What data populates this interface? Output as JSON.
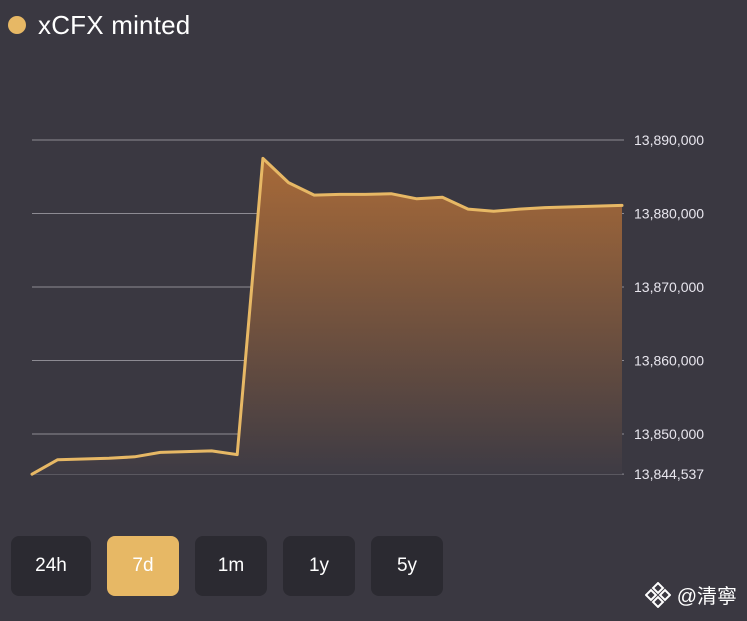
{
  "header": {
    "title": "xCFX minted",
    "dot_color": "#e7b865"
  },
  "chart_data": {
    "type": "area",
    "title": "xCFX minted",
    "xlabel": "",
    "ylabel": "",
    "yticks": [
      13844537,
      13850000,
      13860000,
      13870000,
      13880000,
      13890000
    ],
    "ytick_labels": [
      "13,844,537",
      "13,850,000",
      "13,860,000",
      "13,870,000",
      "13,880,000",
      "13,890,000"
    ],
    "ylim": [
      13844537,
      13890000
    ],
    "grid": true,
    "line_color": "#e7b865",
    "fill_top_color": "#a86a38",
    "series": [
      {
        "values": [
          13844537,
          13846500,
          13846600,
          13846700,
          13846900,
          13847500,
          13847600,
          13847700,
          13847200,
          13887500,
          13884200,
          13882500,
          13882600,
          13882600,
          13882700,
          13882000,
          13882200,
          13880600,
          13880300,
          13880600,
          13880800,
          13880900,
          13881000,
          13881100
        ]
      }
    ]
  },
  "range_selector": {
    "buttons": [
      {
        "label": "24h",
        "active": false
      },
      {
        "label": "7d",
        "active": true
      },
      {
        "label": "1m",
        "active": false
      },
      {
        "label": "1y",
        "active": false
      },
      {
        "label": "5y",
        "active": false
      }
    ]
  },
  "watermark": {
    "text": "@清寧"
  }
}
